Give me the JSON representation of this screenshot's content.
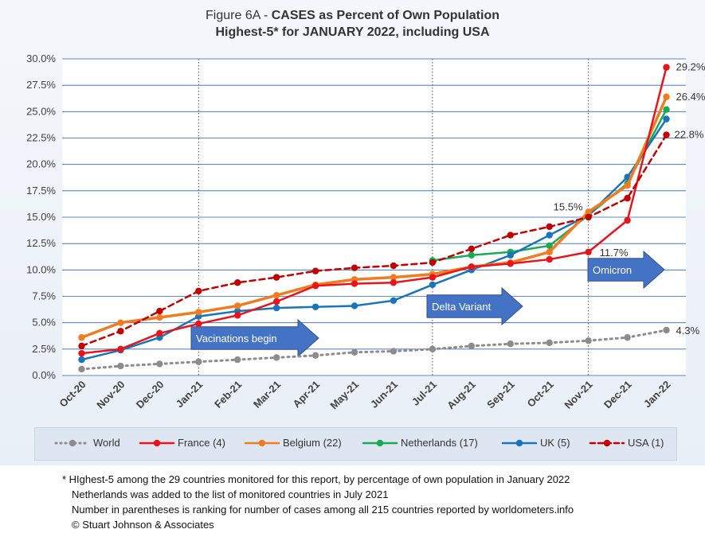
{
  "title": {
    "line1_prefix": "Figure 6A - ",
    "line1_bold": "CASES as Percent of Own Population",
    "line2": "Highest-5* for JANUARY 2022, including USA"
  },
  "chart_data": {
    "type": "line",
    "categories": [
      "Oct-20",
      "Nov-20",
      "Dec-20",
      "Jan-21",
      "Feb-21",
      "Mar-21",
      "Apr-21",
      "May-21",
      "Jun-21",
      "Jul-21",
      "Aug-21",
      "Sep-21",
      "Oct-21",
      "Nov-21",
      "Dec-21",
      "Jan-22"
    ],
    "ylim": [
      0,
      30
    ],
    "yticks": [
      "0.0%",
      "2.5%",
      "5.0%",
      "7.5%",
      "10.0%",
      "12.5%",
      "15.0%",
      "17.5%",
      "20.0%",
      "22.5%",
      "25.0%",
      "27.5%",
      "30.0%"
    ],
    "grid": true,
    "legend_position": "bottom",
    "series": [
      {
        "name": "World",
        "color": "#8c8c8c",
        "style": "dotted",
        "values": [
          0.6,
          0.9,
          1.1,
          1.3,
          1.5,
          1.7,
          1.9,
          2.2,
          2.3,
          2.5,
          2.8,
          3.0,
          3.1,
          3.3,
          3.6,
          4.3
        ]
      },
      {
        "name": "France (4)",
        "color": "#e8141b",
        "style": "solid",
        "values": [
          2.1,
          2.5,
          4.0,
          4.9,
          5.7,
          7.0,
          8.5,
          8.7,
          8.8,
          9.3,
          10.3,
          10.6,
          11.0,
          11.7,
          14.7,
          29.2
        ]
      },
      {
        "name": "Belgium (22)",
        "color": "#f07c22",
        "style": "solid",
        "values": [
          3.6,
          5.0,
          5.5,
          6.0,
          6.6,
          7.6,
          8.6,
          9.1,
          9.3,
          9.6,
          10.3,
          10.7,
          11.7,
          15.5,
          18.0,
          26.4
        ]
      },
      {
        "name": "Netherlands (17)",
        "color": "#1aaa55",
        "style": "solid",
        "values": [
          null,
          null,
          null,
          null,
          null,
          null,
          null,
          null,
          null,
          10.9,
          11.4,
          11.7,
          12.3,
          15.2,
          18.2,
          25.2
        ]
      },
      {
        "name": "UK (5)",
        "color": "#1a74bb",
        "style": "solid",
        "values": [
          1.5,
          2.4,
          3.6,
          5.6,
          6.1,
          6.4,
          6.5,
          6.6,
          7.1,
          8.6,
          10.0,
          11.4,
          13.3,
          15.2,
          18.8,
          24.3
        ]
      },
      {
        "name": "USA (1)",
        "color": "#c00000",
        "style": "dashed",
        "values": [
          2.8,
          4.2,
          6.1,
          8.0,
          8.8,
          9.3,
          9.9,
          10.2,
          10.4,
          10.7,
          12.0,
          13.3,
          14.1,
          15.0,
          16.8,
          22.8
        ]
      }
    ],
    "end_labels": [
      {
        "text": "29.2%",
        "series": "France (4)"
      },
      {
        "text": "26.4%",
        "series": "Belgium (22)"
      },
      {
        "text": "22.8%",
        "series": "USA (1)"
      },
      {
        "text": "4.3%",
        "series": "World"
      },
      {
        "text": "15.5%",
        "series": "Belgium (22)",
        "category": "Nov-21"
      },
      {
        "text": "11.7%",
        "series": "France (4)",
        "category": "Nov-21"
      }
    ],
    "markers": [
      {
        "category": "Jan-21",
        "label": "Vacinations begin"
      },
      {
        "category": "Jul-21",
        "label": "Delta Variant"
      },
      {
        "category": "Nov-21",
        "label": "Omicron"
      }
    ],
    "arrow_color": "#4472c4"
  },
  "footnotes": [
    "* HIghest-5 among the 29 countries monitored for this report, by percentage of own population in January 2022",
    "Netherlands was added to the list of monitored countries in July 2021",
    "Number in parentheses is ranking for number of cases among all 215 countries reported by worldometers.info",
    "© Stuart Johnson & Associates"
  ]
}
